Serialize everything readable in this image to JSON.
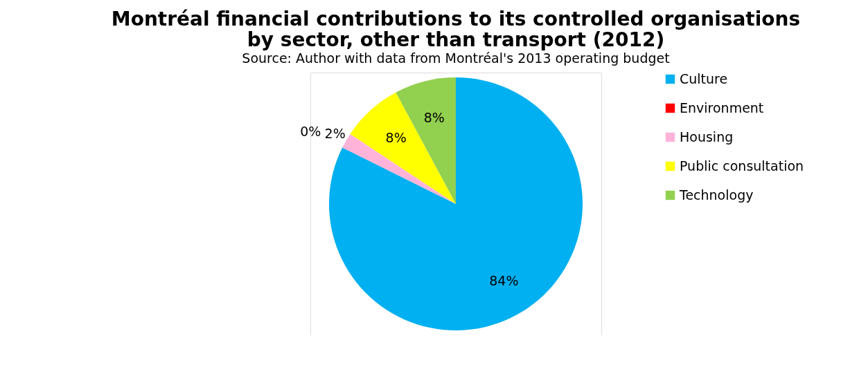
{
  "chart_data": {
    "type": "pie",
    "title": "Montréal financial contributions to its controlled organisations by sector, other than transport (2012)",
    "subtitle": "Source: Author with data from Montréal's 2013 operating budget",
    "categories": [
      "Culture",
      "Environment",
      "Housing",
      "Public consultation",
      "Technology"
    ],
    "values": [
      84,
      0,
      2,
      8,
      8
    ],
    "colors": [
      "#00b0f0",
      "#ff0000",
      "#ffb3d9",
      "#ffff00",
      "#92d050"
    ],
    "value_labels": [
      "84%",
      "0%",
      "2%",
      "8%",
      "8%"
    ],
    "legend": "right"
  }
}
